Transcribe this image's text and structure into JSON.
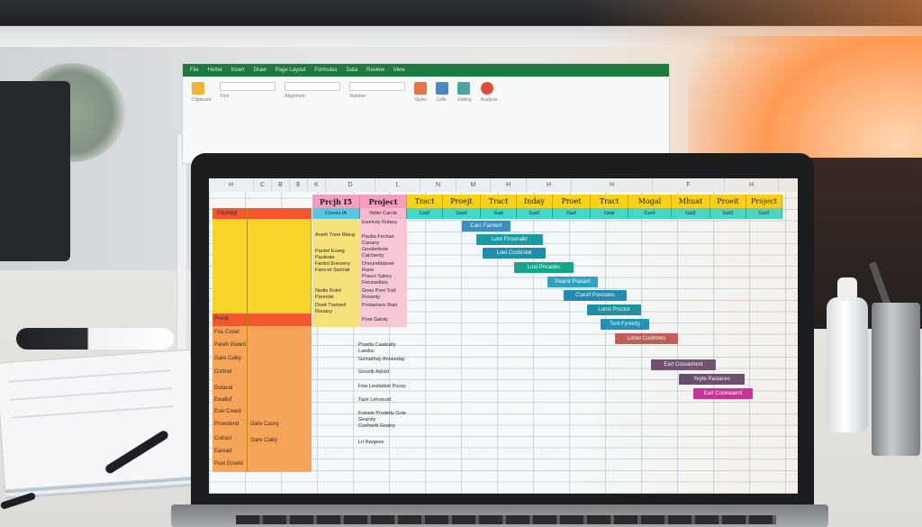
{
  "back_monitor": {
    "tabs": [
      "File",
      "Home",
      "Insert",
      "Draw",
      "Page Layout",
      "Formulas",
      "Data",
      "Review",
      "View"
    ],
    "groups": [
      "Clipboard",
      "Font",
      "Alignment",
      "Number",
      "Styles",
      "Cells",
      "Editing",
      "Analysis"
    ]
  },
  "sheet": {
    "column_headers": [
      "H",
      "C",
      "B",
      "E",
      "K",
      "D",
      "L",
      "N",
      "M",
      "H",
      "H",
      "H",
      "F",
      "H"
    ],
    "project_header": [
      "Prcjh I5",
      "Project",
      "Tract",
      "Proejt",
      "Tract",
      "Inday",
      "Proet",
      "Tract",
      "Mogal",
      "Mhuat",
      "Proeit",
      "Project"
    ],
    "sub_header": [
      "Coress IA",
      "Yeller Carcle",
      "Cat2",
      "Gard",
      "Gad",
      "Gat2",
      "Garf",
      "Geal",
      "Gard",
      "Gat2",
      "Gat2",
      "Gat2"
    ],
    "left_labels": [
      "Pauhdgt",
      "Prenjt",
      "Fou Cnoel",
      "Pareh Gwant",
      "Gare Caiky",
      "Cortnol",
      "Dotaval",
      "Ewalluf",
      "Evel Creed",
      "Proestend",
      "Cotrasl",
      "Eanrad",
      "Poxt Grsetd"
    ],
    "left_values": [
      "Gare Casny",
      "Gare Ciaky"
    ],
    "col2_items": [
      "Arseh Tnne Rlang",
      "Pardet Euwig Pauleate",
      "Fardot Eneseny Famcet Sarctak",
      "Nedle Rolet Panrelat",
      "Dneit Tnetsed Rouauy"
    ],
    "col3_items": [
      "Ewetcity Rolaey",
      "Pauba Fechan Canany",
      "Gonderbute Calchenty",
      "Dnoureldatoeir Rane",
      "Prauct Salory Fetunedlaio",
      "Goes Pnnt Tctd Rosanty",
      "Protaetanc Ruis",
      "Puat Gatuty"
    ],
    "col3_lower": [
      "Prastla Caatesity Laeduc",
      "Gomarfuty Anneeday",
      "Gnoolb Adolst",
      "Fow Leurlation Pocuy",
      "Tasir Lehoeutd",
      "Foewle Prodetty Goie Gearsty",
      "Coefoedi Gealoy",
      "Lrl Rargees"
    ],
    "bars": [
      {
        "label": "Carc Famtert",
        "color": "#3b8fb8"
      },
      {
        "label": "Lont Fhounalkt",
        "color": "#1a9aa3"
      },
      {
        "label": "Loet Contirstet",
        "color": "#1f8ea8"
      },
      {
        "label": "Lost Pncades",
        "color": "#14a68a"
      },
      {
        "label": "Pearst Prasact",
        "color": "#2fa2c4"
      },
      {
        "label": "Coeslf Povoutes",
        "color": "#248ab1"
      },
      {
        "label": "Lonst Prsctor",
        "color": "#1d8fa3"
      },
      {
        "label": "Tont Fynletty",
        "color": "#1b92b9"
      },
      {
        "label": "Loran Cootmets",
        "color": "#bd5d57"
      },
      {
        "label": "Eart Coosement",
        "color": "#6b4d6e"
      },
      {
        "label": "Yeyte Pasiaces",
        "color": "#5e4a6e"
      },
      {
        "label": "Eart Cookwaent",
        "color": "#c42a9a"
      }
    ]
  }
}
